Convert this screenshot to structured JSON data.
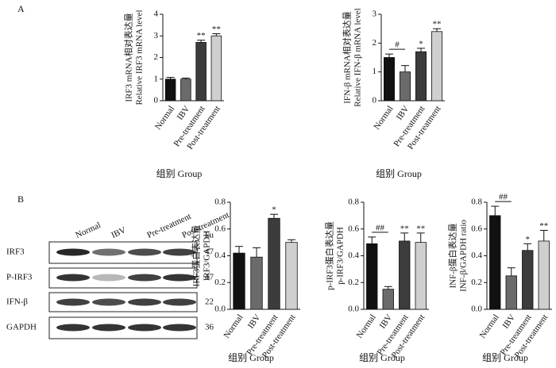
{
  "panels": [
    "A",
    "B"
  ],
  "blot": {
    "lanes": [
      "Normal",
      "IBV",
      "Pre-treatment",
      "Post-treatment"
    ],
    "unit": "ku",
    "rows": [
      {
        "label": "IRF3",
        "size": 47
      },
      {
        "label": "P-IRF3",
        "size": 47
      },
      {
        "label": "IFN-β",
        "size": 22
      },
      {
        "label": "GAPDH",
        "size": 36
      }
    ]
  },
  "chart_data": [
    {
      "type": "bar",
      "ylabel": [
        "IRF3 mRNA相对表达量",
        "Relative IRF3 mRNA level"
      ],
      "xlabel": "组别 Group",
      "categories": [
        "Normal",
        "IBV",
        "Pre-treatment",
        "Post-treatment"
      ],
      "values": [
        1.0,
        1.0,
        2.7,
        3.0
      ],
      "errors": [
        0.08,
        0.05,
        0.1,
        0.1
      ],
      "colors": [
        "#111111",
        "#6b6b6b",
        "#3c3c3c",
        "#cfcfcf"
      ],
      "markers": [
        null,
        null,
        "**",
        "**"
      ],
      "ylim": [
        0,
        4
      ],
      "yticks": [
        0,
        1,
        2,
        3,
        4
      ]
    },
    {
      "type": "bar",
      "ylabel": [
        "IFN-β mRNA相对表达量",
        "Relative IFN-β mRNA level"
      ],
      "xlabel": "组别 Group",
      "categories": [
        "Normal",
        "IBV",
        "Pre-treatment",
        "Post-treatment"
      ],
      "values": [
        1.5,
        1.0,
        1.7,
        2.4
      ],
      "errors": [
        0.12,
        0.22,
        0.12,
        0.1
      ],
      "colors": [
        "#111111",
        "#6b6b6b",
        "#3c3c3c",
        "#cfcfcf"
      ],
      "markers": [
        null,
        "#",
        "*",
        "**"
      ],
      "ylim": [
        0,
        3
      ],
      "yticks": [
        0,
        1,
        2,
        3
      ]
    },
    {
      "type": "bar",
      "ylabel": [
        "IRF3蛋白表达量",
        "IRF3/GAPDH"
      ],
      "xlabel": "组别 Group",
      "categories": [
        "Normal",
        "IBV",
        "Pre-treatment",
        "Post-treatment"
      ],
      "values": [
        0.42,
        0.39,
        0.68,
        0.5
      ],
      "errors": [
        0.05,
        0.07,
        0.03,
        0.02
      ],
      "colors": [
        "#111111",
        "#6b6b6b",
        "#3c3c3c",
        "#cfcfcf"
      ],
      "markers": [
        null,
        null,
        "*",
        null
      ],
      "ylim": [
        0,
        0.8
      ],
      "yticks": [
        {
          "value": 0,
          "label": "0.0"
        },
        0.2,
        0.4,
        0.6,
        0.8
      ]
    },
    {
      "type": "bar",
      "ylabel": [
        "p-IRF3蛋白表达量",
        "p-IRF3/GAPDH"
      ],
      "xlabel": "组别 Group",
      "categories": [
        "Normal",
        "IBV",
        "Pre-treatment",
        "Post-treatment"
      ],
      "values": [
        0.49,
        0.15,
        0.51,
        0.5
      ],
      "errors": [
        0.05,
        0.02,
        0.06,
        0.07
      ],
      "colors": [
        "#111111",
        "#6b6b6b",
        "#3c3c3c",
        "#cfcfcf"
      ],
      "markers": [
        null,
        "##",
        "**",
        "**"
      ],
      "ylim": [
        0,
        0.8
      ],
      "yticks": [
        {
          "value": 0,
          "label": "0.0"
        },
        0.2,
        0.4,
        0.6,
        0.8
      ]
    },
    {
      "type": "bar",
      "ylabel": [
        "INF-β蛋白表达量",
        "INF-β/GAPDH ratio"
      ],
      "xlabel": "组别 Group",
      "categories": [
        "Normal",
        "IBV",
        "Pre-treatment",
        "Post-treatment"
      ],
      "values": [
        0.7,
        0.25,
        0.44,
        0.51
      ],
      "errors": [
        0.07,
        0.06,
        0.05,
        0.08
      ],
      "colors": [
        "#111111",
        "#6b6b6b",
        "#3c3c3c",
        "#cfcfcf"
      ],
      "markers": [
        null,
        "##",
        "*",
        "**"
      ],
      "ylim": [
        0,
        0.8
      ],
      "yticks": [
        {
          "value": 0,
          "label": "0.0"
        },
        0.2,
        0.4,
        0.6,
        0.8
      ]
    }
  ]
}
